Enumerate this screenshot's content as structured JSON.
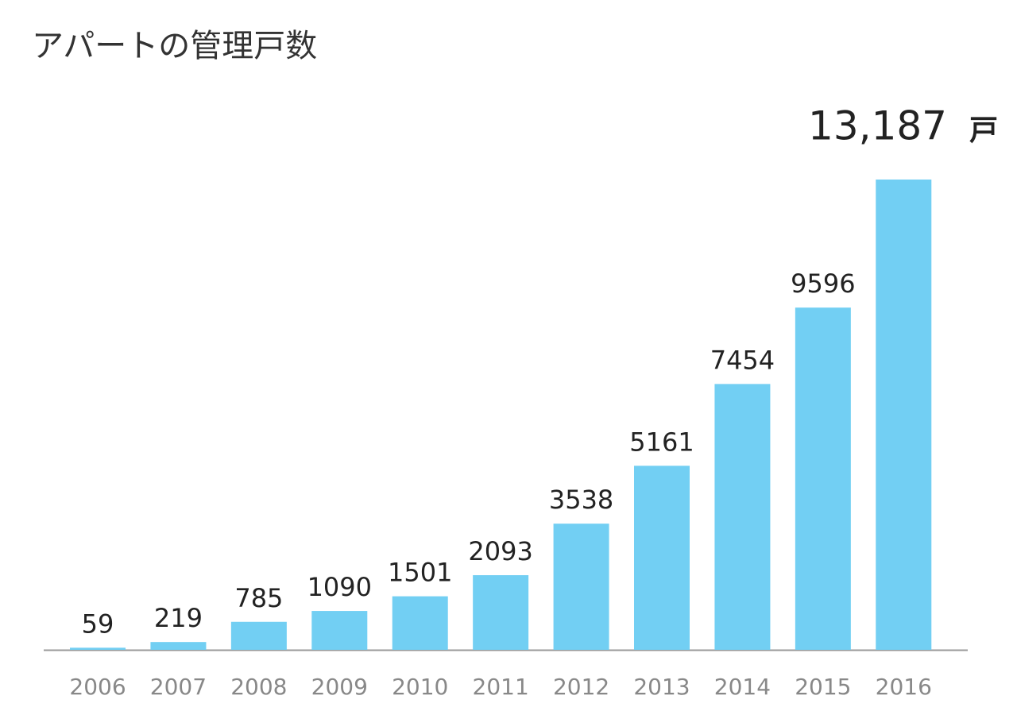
{
  "chart_data": {
    "type": "bar",
    "title": "アパートの管理戸数",
    "categories": [
      "2006",
      "2007",
      "2008",
      "2009",
      "2010",
      "2011",
      "2012",
      "2013",
      "2014",
      "2015",
      "2016"
    ],
    "values": [
      59,
      219,
      785,
      1090,
      1501,
      2093,
      3538,
      5161,
      7454,
      9596,
      13187
    ],
    "value_labels": [
      "59",
      "219",
      "785",
      "1090",
      "1501",
      "2093",
      "3538",
      "5161",
      "7454",
      "9596",
      "13,187"
    ],
    "unit": "戸",
    "color": "#72cff3",
    "ylim": [
      0,
      14000
    ]
  }
}
